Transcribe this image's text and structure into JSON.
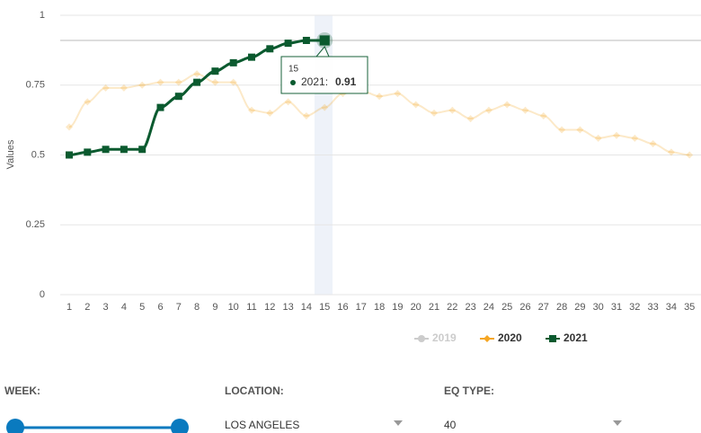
{
  "chart_data": {
    "type": "line",
    "y_axis_title": "Values",
    "categories": [
      "1",
      "2",
      "3",
      "4",
      "5",
      "6",
      "7",
      "8",
      "9",
      "10",
      "11",
      "12",
      "13",
      "14",
      "15",
      "16",
      "17",
      "18",
      "19",
      "20",
      "21",
      "22",
      "23",
      "24",
      "25",
      "26",
      "27",
      "28",
      "29",
      "30",
      "31",
      "32",
      "33",
      "34",
      "35"
    ],
    "ylim": [
      0,
      1
    ],
    "yticks": [
      0,
      0.25,
      0.5,
      0.75,
      1
    ],
    "grid": true,
    "highlight_index": 14,
    "series": [
      {
        "name": "2019",
        "color": "#cccccc",
        "visible": false,
        "marker": "circle",
        "values": [
          null,
          null,
          null,
          null,
          null,
          null,
          null,
          null,
          null,
          null,
          null,
          null,
          null,
          null,
          null,
          null,
          null,
          null,
          null,
          null,
          null,
          null,
          null,
          null,
          null,
          null,
          null,
          null,
          null,
          null,
          null,
          null,
          null,
          null,
          null
        ]
      },
      {
        "name": "2020",
        "color": "#f5a623",
        "visible": true,
        "faded": true,
        "marker": "diamond",
        "values": [
          0.6,
          0.69,
          0.74,
          0.74,
          0.75,
          0.76,
          0.76,
          0.79,
          0.76,
          0.76,
          0.66,
          0.65,
          0.69,
          0.64,
          0.67,
          0.72,
          0.73,
          0.71,
          0.72,
          0.68,
          0.65,
          0.66,
          0.63,
          0.66,
          0.68,
          0.66,
          0.64,
          0.59,
          0.59,
          0.56,
          0.57,
          0.56,
          0.54,
          0.51,
          0.5
        ]
      },
      {
        "name": "2021",
        "color": "#0b5a2f",
        "visible": true,
        "marker": "square",
        "values": [
          0.5,
          0.51,
          0.52,
          0.52,
          0.52,
          0.67,
          0.71,
          0.76,
          0.8,
          0.83,
          0.85,
          0.88,
          0.9,
          0.91,
          0.91,
          null,
          null,
          null,
          null,
          null,
          null,
          null,
          null,
          null,
          null,
          null,
          null,
          null,
          null,
          null,
          null,
          null,
          null,
          null,
          null
        ]
      }
    ],
    "tooltip": {
      "label": "2021:"
    }
  },
  "controls": [
    {
      "label": "WEEK:"
    },
    {
      "label": "LOCATION:",
      "value": "LOS ANGELES"
    },
    {
      "label": "EQ TYPE:",
      "value": "40"
    }
  ]
}
